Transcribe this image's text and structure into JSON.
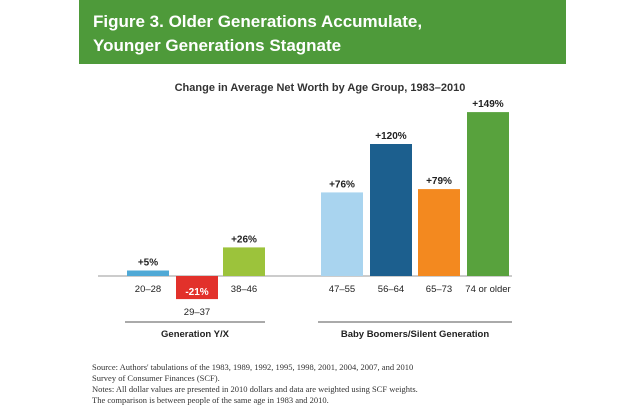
{
  "header": {
    "title_line1": "Figure 3. Older Generations Accumulate,",
    "title_line2": "Younger Generations Stagnate"
  },
  "chart_data": {
    "type": "bar",
    "title": "Change in Average Net Worth by Age Group, 1983–2010",
    "categories": [
      "20–28",
      "29–37",
      "38–46",
      "47–55",
      "56–64",
      "65–73",
      "74 or older"
    ],
    "values": [
      5,
      -21,
      26,
      76,
      120,
      79,
      149
    ],
    "value_labels": [
      "+5%",
      "-21%",
      "+26%",
      "+76%",
      "+120%",
      "+79%",
      "+149%"
    ],
    "bar_colors": [
      "#4fa9d6",
      "#e2312b",
      "#9cc33b",
      "#a9d4ef",
      "#1c5f8e",
      "#f3891f",
      "#58a23d"
    ],
    "groups": [
      {
        "label": "Generation Y/X",
        "categories": [
          0,
          1,
          2
        ]
      },
      {
        "label": "Baby Boomers/Silent Generation",
        "categories": [
          3,
          4,
          5,
          6
        ]
      }
    ],
    "ylim": [
      -30,
      155
    ],
    "grid": false,
    "legend": "none",
    "xlabel": "",
    "ylabel": ""
  },
  "notes": {
    "source_line1": "Source: Authors' tabulations of the 1983, 1989, 1992, 1995, 1998, 2001, 2004, 2007, and 2010",
    "source_line2": "Survey of Consumer Finances (SCF).",
    "notes_line1": "Notes: All dollar values are presented in 2010 dollars and data are weighted using SCF weights.",
    "notes_line2": "The comparison is between people of the same age in 1983 and 2010."
  }
}
